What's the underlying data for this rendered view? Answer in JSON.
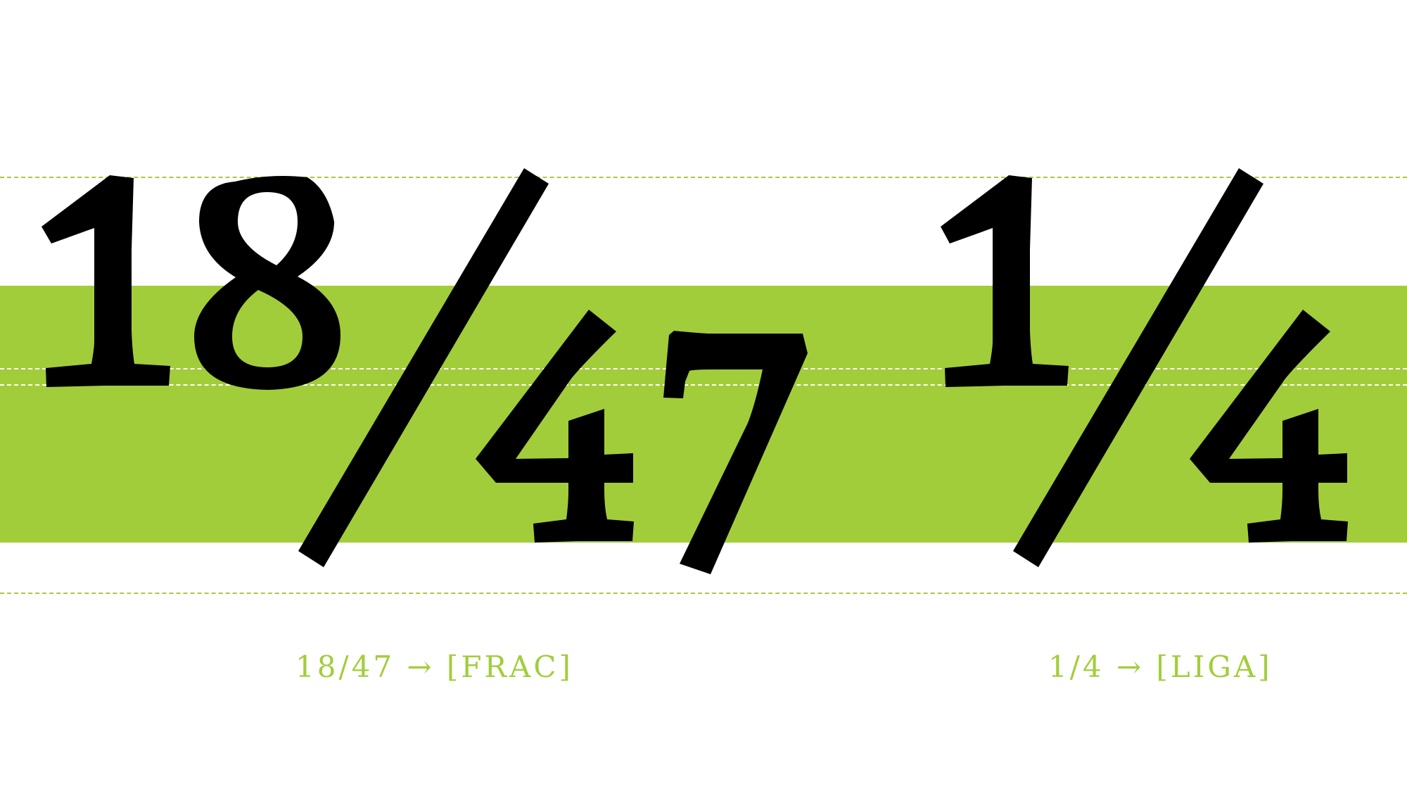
{
  "colors": {
    "background": "#ffffff",
    "band": "#a2cd3a",
    "glyph": "#000000",
    "guide_on_white": "#a2cd3a",
    "guide_on_band": "#ffffff",
    "caption": "#a2cd3a"
  },
  "examples": [
    {
      "id": "frac",
      "caption": "18/47 → [FRAC]",
      "numerator": "18",
      "denominator": "47"
    },
    {
      "id": "liga",
      "caption": "1/4 → [LIGA]",
      "numerator": "1",
      "denominator": "4"
    }
  ]
}
